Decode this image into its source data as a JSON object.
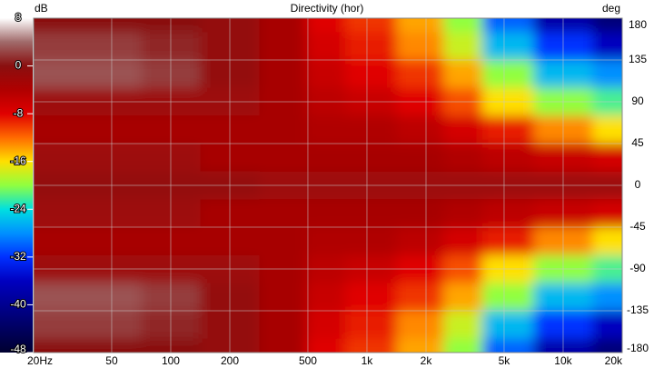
{
  "chart_data": {
    "type": "heatmap",
    "title": "Directivity (hor)",
    "zlabel": "dB",
    "ylabel": "deg",
    "log_x": true,
    "grid": true,
    "x": [
      20,
      50,
      100,
      200,
      400,
      600,
      1000,
      2000,
      3000,
      5000,
      10000,
      20000
    ],
    "y": [
      180,
      150,
      120,
      90,
      60,
      30,
      0,
      -30,
      -60,
      -90,
      -120,
      -150,
      -180
    ],
    "values": [
      [
        0,
        0,
        0,
        -1,
        -3,
        -8,
        -10,
        -14,
        -20,
        -30,
        -38,
        -42
      ],
      [
        2,
        2,
        1,
        -1,
        -3,
        -7,
        -9,
        -13,
        -18,
        -26,
        -32,
        -36
      ],
      [
        3,
        3,
        2,
        -1,
        -3,
        -6,
        -8,
        -10,
        -14,
        -20,
        -26,
        -28
      ],
      [
        -2,
        -2,
        -2,
        -2,
        -3,
        -5,
        -6,
        -8,
        -11,
        -16,
        -20,
        -22
      ],
      [
        -3,
        -3,
        -3,
        -3,
        -3,
        -4,
        -4,
        -5,
        -7,
        -9,
        -13,
        -16
      ],
      [
        -2,
        -2,
        -2,
        -3,
        -3,
        -3,
        -3,
        -3,
        -4,
        -5,
        -6,
        -7
      ],
      [
        -1,
        -1,
        -1,
        -1,
        -2,
        -2,
        -2,
        -2,
        -2,
        -2,
        -2,
        -2
      ],
      [
        -2,
        -2,
        -2,
        -3,
        -3,
        -3,
        -3,
        -3,
        -4,
        -5,
        -6,
        -7
      ],
      [
        -3,
        -3,
        -3,
        -3,
        -3,
        -4,
        -4,
        -5,
        -7,
        -9,
        -13,
        -16
      ],
      [
        -2,
        -2,
        -2,
        -2,
        -3,
        -5,
        -6,
        -8,
        -11,
        -16,
        -20,
        -22
      ],
      [
        3,
        3,
        2,
        -1,
        -3,
        -6,
        -8,
        -10,
        -14,
        -20,
        -26,
        -28
      ],
      [
        2,
        2,
        1,
        -1,
        -3,
        -7,
        -9,
        -13,
        -18,
        -26,
        -32,
        -36
      ],
      [
        0,
        0,
        0,
        -1,
        -3,
        -8,
        -10,
        -14,
        -20,
        -30,
        -38,
        -42
      ]
    ],
    "xlim": [
      20,
      20000
    ],
    "ylim": [
      -180,
      180
    ],
    "xticks": [
      {
        "value": 20,
        "label": "20Hz"
      },
      50,
      100,
      200,
      500,
      {
        "value": 1000,
        "label": "1k"
      },
      {
        "value": 2000,
        "label": "2k"
      },
      {
        "value": 5000,
        "label": "5k"
      },
      {
        "value": 10000,
        "label": "10k"
      },
      {
        "value": 20000,
        "label": "20k"
      }
    ],
    "yticks": [
      180,
      135,
      90,
      45,
      0,
      -45,
      -90,
      -135,
      -180
    ],
    "clim": [
      -48,
      8
    ],
    "cticks": [
      8,
      0,
      -8,
      -16,
      -24,
      -32,
      -40,
      -48
    ],
    "colors": [
      "#ffffff",
      "#a06a6a",
      "#8a0f0f",
      "#b00000",
      "#e00000",
      "#ff6a00",
      "#ffe000",
      "#90ff40",
      "#00e0e0",
      "#0090ff",
      "#0030ff",
      "#0000c0",
      "#000090",
      "#000060",
      "#000030"
    ]
  }
}
